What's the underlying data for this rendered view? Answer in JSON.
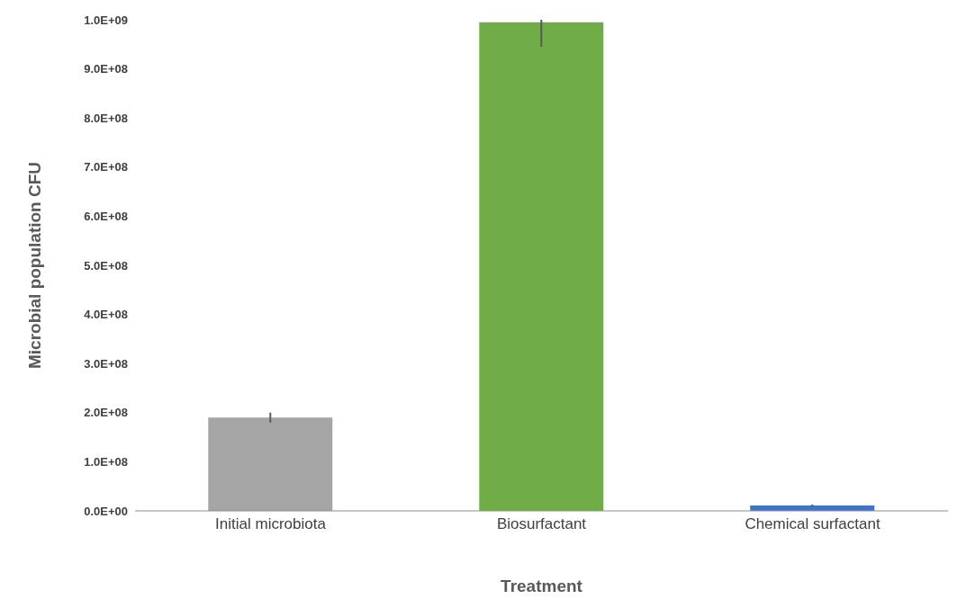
{
  "chart_data": {
    "type": "bar",
    "xlabel": "Treatment",
    "ylabel": "Microbial population CFU",
    "categories": [
      "Initial microbiota",
      "Biosurfactant",
      "Chemical surfactant"
    ],
    "values": [
      190000000,
      995000000,
      11000000
    ],
    "errors": [
      10000000,
      [
        945000000,
        1000000000
      ],
      2000000
    ],
    "colors": [
      "#a5a5a5",
      "#70ad47",
      "#4472c4"
    ],
    "ylim": [
      0,
      1000000000
    ],
    "yticks": [
      {
        "value": 0,
        "label": "0.0E+00"
      },
      {
        "value": 100000000,
        "label": "1.0E+08"
      },
      {
        "value": 200000000,
        "label": "2.0E+08"
      },
      {
        "value": 300000000,
        "label": "3.0E+08"
      },
      {
        "value": 400000000,
        "label": "4.0E+08"
      },
      {
        "value": 500000000,
        "label": "5.0E+08"
      },
      {
        "value": 600000000,
        "label": "6.0E+08"
      },
      {
        "value": 700000000,
        "label": "7.0E+08"
      },
      {
        "value": 800000000,
        "label": "8.0E+08"
      },
      {
        "value": 900000000,
        "label": "9.0E+08"
      },
      {
        "value": 1000000000,
        "label": "1.0E+09"
      }
    ],
    "grid": false,
    "legend": false
  }
}
